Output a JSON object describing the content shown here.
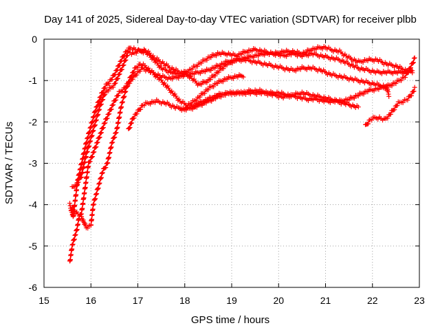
{
  "chart_data": {
    "type": "scatter",
    "title": "Day 141 of 2025, Sidereal Day-to-day VTEC variation (SDTVAR) for receiver plbb",
    "xlabel": "GPS time / hours",
    "ylabel": "SDTVAR / TECUs",
    "xlim": [
      15,
      23
    ],
    "ylim": [
      -6,
      0
    ],
    "xticks": [
      "15",
      "16",
      "17",
      "18",
      "19",
      "20",
      "21",
      "22",
      "23"
    ],
    "yticks": [
      "0",
      "-1",
      "-2",
      "-3",
      "-4",
      "-5",
      "-6"
    ],
    "grid": true,
    "marker": "+",
    "color": "#ff0000",
    "series": [
      {
        "name": "track-a",
        "points": [
          [
            15.55,
            -4.0
          ],
          [
            15.62,
            -4.3
          ],
          [
            15.72,
            -3.4
          ],
          [
            15.8,
            -3.0
          ],
          [
            15.9,
            -2.5
          ],
          [
            16.0,
            -2.1
          ],
          [
            16.1,
            -1.7
          ],
          [
            16.2,
            -1.4
          ],
          [
            16.3,
            -1.15
          ],
          [
            16.45,
            -0.95
          ],
          [
            16.55,
            -0.75
          ],
          [
            16.65,
            -0.5
          ],
          [
            16.75,
            -0.3
          ],
          [
            16.85,
            -0.2
          ],
          [
            16.95,
            -0.25
          ],
          [
            17.05,
            -0.3
          ],
          [
            17.15,
            -0.3
          ],
          [
            17.3,
            -0.45
          ],
          [
            17.5,
            -0.7
          ],
          [
            17.7,
            -0.8
          ],
          [
            17.9,
            -0.85
          ],
          [
            18.1,
            -0.75
          ],
          [
            18.3,
            -0.6
          ],
          [
            18.5,
            -0.45
          ],
          [
            18.7,
            -0.35
          ],
          [
            18.9,
            -0.35
          ],
          [
            19.1,
            -0.4
          ],
          [
            19.3,
            -0.3
          ],
          [
            19.5,
            -0.25
          ],
          [
            19.7,
            -0.3
          ],
          [
            19.9,
            -0.35
          ],
          [
            20.1,
            -0.3
          ],
          [
            20.3,
            -0.3
          ],
          [
            20.5,
            -0.35
          ],
          [
            20.7,
            -0.25
          ],
          [
            20.9,
            -0.2
          ],
          [
            21.0,
            -0.2
          ],
          [
            21.1,
            -0.25
          ],
          [
            21.3,
            -0.3
          ],
          [
            21.5,
            -0.45
          ],
          [
            21.7,
            -0.55
          ],
          [
            21.9,
            -0.5
          ],
          [
            22.1,
            -0.5
          ],
          [
            22.3,
            -0.6
          ],
          [
            22.5,
            -0.65
          ],
          [
            22.7,
            -0.75
          ],
          [
            22.85,
            -0.8
          ]
        ]
      },
      {
        "name": "track-b",
        "points": [
          [
            15.6,
            -3.6
          ],
          [
            15.7,
            -3.5
          ],
          [
            15.8,
            -3.3
          ],
          [
            15.9,
            -2.8
          ],
          [
            16.0,
            -2.4
          ],
          [
            16.1,
            -2.0
          ],
          [
            16.2,
            -1.6
          ],
          [
            16.3,
            -1.3
          ],
          [
            16.4,
            -1.2
          ],
          [
            16.5,
            -1.1
          ],
          [
            16.6,
            -0.85
          ],
          [
            16.7,
            -0.6
          ],
          [
            16.8,
            -0.3
          ],
          [
            16.9,
            -0.35
          ],
          [
            17.0,
            -0.3
          ],
          [
            17.1,
            -0.25
          ],
          [
            17.2,
            -0.3
          ],
          [
            17.35,
            -0.45
          ],
          [
            17.5,
            -0.55
          ],
          [
            17.7,
            -0.7
          ],
          [
            17.9,
            -0.8
          ],
          [
            18.1,
            -0.9
          ],
          [
            18.3,
            -1.1
          ],
          [
            18.5,
            -1.0
          ],
          [
            18.7,
            -0.8
          ],
          [
            18.9,
            -0.6
          ],
          [
            19.1,
            -0.5
          ],
          [
            19.3,
            -0.45
          ],
          [
            19.5,
            -0.4
          ],
          [
            19.7,
            -0.35
          ],
          [
            19.9,
            -0.35
          ],
          [
            20.1,
            -0.4
          ],
          [
            20.3,
            -0.35
          ],
          [
            20.5,
            -0.4
          ],
          [
            20.7,
            -0.35
          ],
          [
            20.9,
            -0.4
          ],
          [
            21.1,
            -0.45
          ],
          [
            21.3,
            -0.5
          ],
          [
            21.5,
            -0.6
          ],
          [
            21.7,
            -0.7
          ],
          [
            21.9,
            -0.75
          ],
          [
            22.1,
            -0.8
          ],
          [
            22.3,
            -0.8
          ],
          [
            22.5,
            -0.8
          ],
          [
            22.7,
            -0.8
          ],
          [
            22.85,
            -0.75
          ]
        ]
      },
      {
        "name": "track-c",
        "points": [
          [
            15.6,
            -4.1
          ],
          [
            15.7,
            -4.2
          ],
          [
            15.8,
            -4.3
          ],
          [
            15.9,
            -4.55
          ],
          [
            16.0,
            -4.5
          ],
          [
            16.05,
            -4.0
          ],
          [
            16.15,
            -3.6
          ],
          [
            16.25,
            -3.2
          ],
          [
            16.35,
            -3.0
          ],
          [
            16.45,
            -2.5
          ],
          [
            16.55,
            -2.2
          ],
          [
            16.65,
            -1.6
          ],
          [
            16.75,
            -1.2
          ],
          [
            16.85,
            -0.9
          ],
          [
            16.95,
            -0.7
          ],
          [
            17.05,
            -0.6
          ],
          [
            17.15,
            -0.65
          ],
          [
            17.3,
            -0.8
          ],
          [
            17.5,
            -1.0
          ],
          [
            17.7,
            -1.25
          ],
          [
            17.9,
            -1.5
          ],
          [
            18.05,
            -1.6
          ],
          [
            18.2,
            -1.5
          ],
          [
            18.35,
            -1.35
          ],
          [
            18.5,
            -1.2
          ],
          [
            18.7,
            -1.05
          ],
          [
            18.9,
            -0.95
          ],
          [
            19.1,
            -0.9
          ],
          [
            19.25,
            -0.88
          ]
        ]
      },
      {
        "name": "track-d",
        "points": [
          [
            15.55,
            -5.4
          ],
          [
            15.6,
            -5.0
          ],
          [
            15.65,
            -4.8
          ],
          [
            15.7,
            -4.6
          ],
          [
            15.75,
            -4.3
          ],
          [
            15.8,
            -4.2
          ],
          [
            15.85,
            -3.8
          ],
          [
            15.9,
            -3.4
          ],
          [
            15.95,
            -3.0
          ],
          [
            16.0,
            -2.9
          ],
          [
            16.1,
            -2.6
          ],
          [
            16.2,
            -2.3
          ],
          [
            16.3,
            -2.0
          ],
          [
            16.4,
            -1.75
          ],
          [
            16.5,
            -1.5
          ],
          [
            16.6,
            -1.3
          ],
          [
            16.7,
            -1.2
          ],
          [
            16.85,
            -1.0
          ],
          [
            17.0,
            -0.8
          ],
          [
            17.1,
            -0.7
          ],
          [
            17.2,
            -0.75
          ],
          [
            17.3,
            -0.8
          ],
          [
            17.4,
            -0.85
          ],
          [
            17.5,
            -0.9
          ],
          [
            17.7,
            -0.95
          ],
          [
            17.9,
            -0.9
          ],
          [
            18.1,
            -0.85
          ],
          [
            18.3,
            -0.8
          ],
          [
            18.5,
            -0.75
          ],
          [
            18.7,
            -0.65
          ],
          [
            18.9,
            -0.55
          ],
          [
            19.1,
            -0.5
          ],
          [
            19.3,
            -0.5
          ],
          [
            19.5,
            -0.55
          ],
          [
            19.7,
            -0.6
          ],
          [
            19.9,
            -0.65
          ],
          [
            20.1,
            -0.7
          ],
          [
            20.3,
            -0.75
          ],
          [
            20.5,
            -0.7
          ],
          [
            20.7,
            -0.7
          ],
          [
            20.9,
            -0.75
          ],
          [
            21.1,
            -0.85
          ],
          [
            21.3,
            -0.9
          ],
          [
            21.5,
            -0.95
          ],
          [
            21.7,
            -1.0
          ],
          [
            21.9,
            -1.05
          ],
          [
            22.1,
            -1.1
          ],
          [
            22.3,
            -1.15
          ],
          [
            22.5,
            -1.05
          ],
          [
            22.7,
            -0.9
          ],
          [
            22.85,
            -0.6
          ],
          [
            22.9,
            -0.45
          ]
        ]
      },
      {
        "name": "track-e",
        "points": [
          [
            16.8,
            -2.2
          ],
          [
            16.9,
            -1.9
          ],
          [
            17.0,
            -1.75
          ],
          [
            17.1,
            -1.6
          ],
          [
            17.2,
            -1.55
          ],
          [
            17.4,
            -1.5
          ],
          [
            17.6,
            -1.55
          ],
          [
            17.8,
            -1.65
          ],
          [
            18.0,
            -1.7
          ],
          [
            18.2,
            -1.65
          ],
          [
            18.4,
            -1.55
          ],
          [
            18.6,
            -1.45
          ],
          [
            18.8,
            -1.35
          ],
          [
            19.0,
            -1.3
          ],
          [
            19.2,
            -1.3
          ],
          [
            19.4,
            -1.25
          ],
          [
            19.6,
            -1.25
          ],
          [
            19.8,
            -1.3
          ],
          [
            20.0,
            -1.3
          ],
          [
            20.2,
            -1.35
          ],
          [
            20.4,
            -1.4
          ],
          [
            20.6,
            -1.45
          ],
          [
            20.8,
            -1.45
          ],
          [
            21.0,
            -1.5
          ],
          [
            21.2,
            -1.5
          ],
          [
            21.4,
            -1.55
          ],
          [
            21.55,
            -1.6
          ],
          [
            21.7,
            -1.65
          ]
        ]
      },
      {
        "name": "track-f",
        "points": [
          [
            17.9,
            -1.7
          ],
          [
            18.1,
            -1.65
          ],
          [
            18.3,
            -1.55
          ],
          [
            18.5,
            -1.45
          ],
          [
            18.7,
            -1.35
          ],
          [
            18.9,
            -1.3
          ],
          [
            19.1,
            -1.3
          ],
          [
            19.3,
            -1.3
          ],
          [
            19.5,
            -1.3
          ],
          [
            19.7,
            -1.3
          ],
          [
            19.9,
            -1.35
          ],
          [
            20.1,
            -1.4
          ],
          [
            20.3,
            -1.35
          ],
          [
            20.5,
            -1.3
          ],
          [
            20.7,
            -1.35
          ],
          [
            20.9,
            -1.4
          ],
          [
            21.1,
            -1.45
          ],
          [
            21.3,
            -1.5
          ],
          [
            21.5,
            -1.45
          ],
          [
            21.7,
            -1.35
          ],
          [
            21.9,
            -1.25
          ],
          [
            22.1,
            -1.2
          ],
          [
            22.3,
            -1.15
          ],
          [
            22.35,
            -1.35
          ]
        ]
      },
      {
        "name": "track-g",
        "points": [
          [
            21.85,
            -2.1
          ],
          [
            21.95,
            -1.95
          ],
          [
            22.05,
            -1.9
          ],
          [
            22.15,
            -1.9
          ],
          [
            22.25,
            -1.95
          ],
          [
            22.35,
            -1.85
          ],
          [
            22.45,
            -1.7
          ],
          [
            22.55,
            -1.55
          ],
          [
            22.65,
            -1.5
          ],
          [
            22.75,
            -1.45
          ],
          [
            22.85,
            -1.3
          ],
          [
            22.9,
            -1.2
          ]
        ]
      }
    ]
  }
}
